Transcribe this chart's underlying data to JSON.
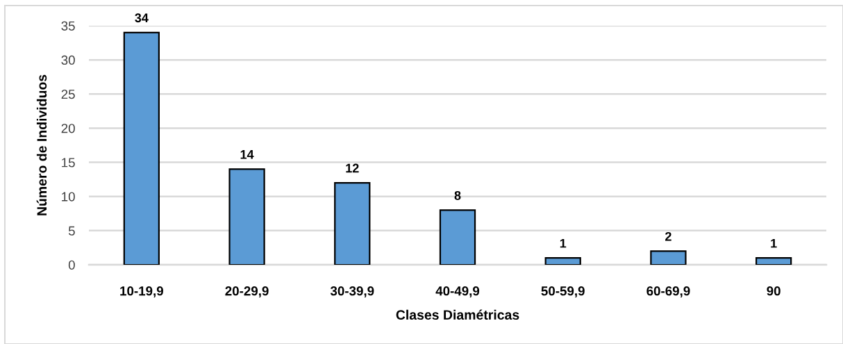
{
  "chart_data": {
    "type": "bar",
    "xlabel": "Clases Diamétricas",
    "ylabel": "Número de Individuos",
    "categories": [
      "10-19,9",
      "20-29,9",
      "30-39,9",
      "40-49,9",
      "50-59,9",
      "60-69,9",
      "90"
    ],
    "values": [
      34,
      14,
      12,
      8,
      1,
      2,
      1
    ],
    "color": "#5b9bd5",
    "ylim": [
      0,
      35
    ],
    "yticks": [
      0,
      5,
      10,
      15,
      20,
      25,
      30,
      35
    ],
    "grid": "y",
    "data_labels": true
  }
}
